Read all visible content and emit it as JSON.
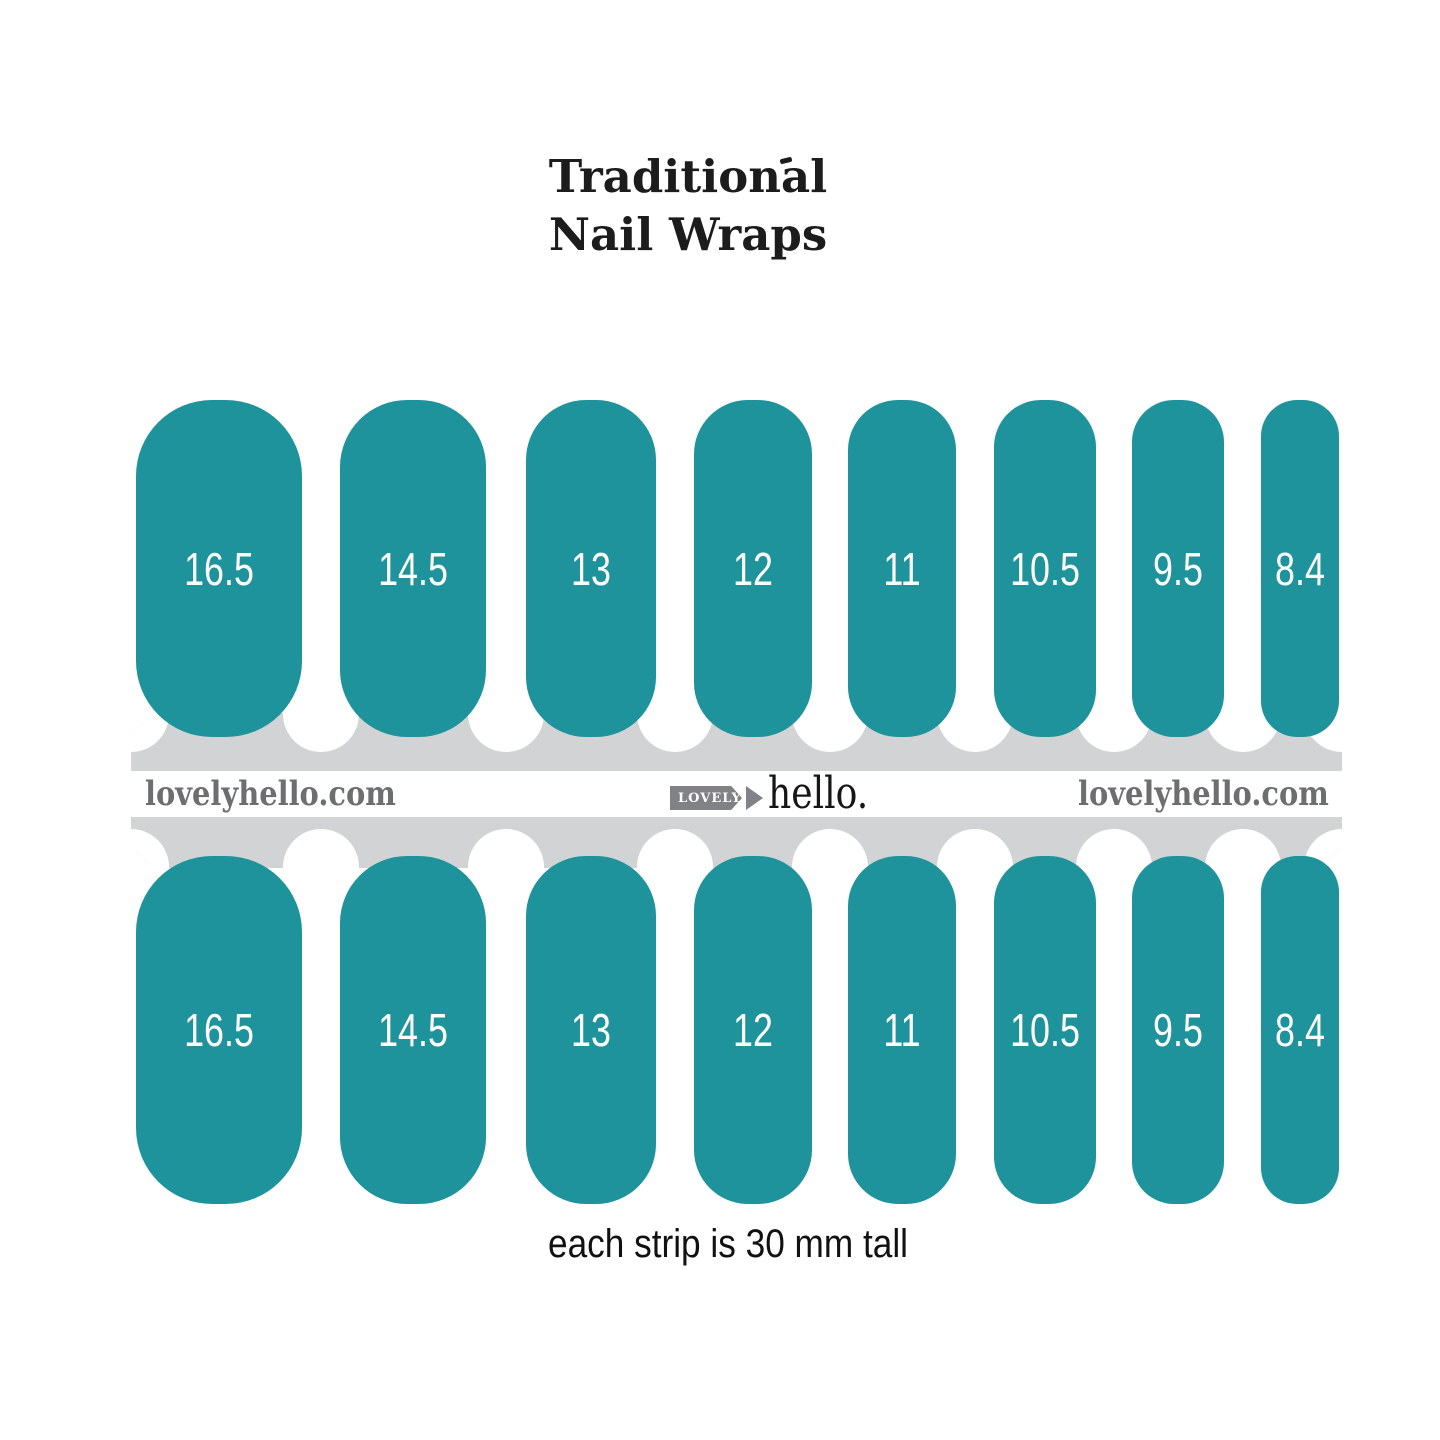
{
  "title": {
    "line1": "Traditional",
    "line2": "Nail Wraps"
  },
  "brand": {
    "url_left": "lovelyhello.com",
    "url_right": "lovelyhello.com",
    "logo_tag": "LOVELY",
    "logo_name": "hello."
  },
  "nails": {
    "sizes_mm": [
      "16.5",
      "14.5",
      "13",
      "12",
      "11",
      "10.5",
      "9.5",
      "8.4"
    ],
    "rows": 2
  },
  "caption": "each strip is 30 mm tall",
  "colors": {
    "teal": "#1e939c",
    "band_gray": "#d1d3d4",
    "brand_gray": "#6d6e70",
    "tag_gray": "#808285",
    "ink": "#1c1c1c",
    "white": "#ffffff"
  }
}
